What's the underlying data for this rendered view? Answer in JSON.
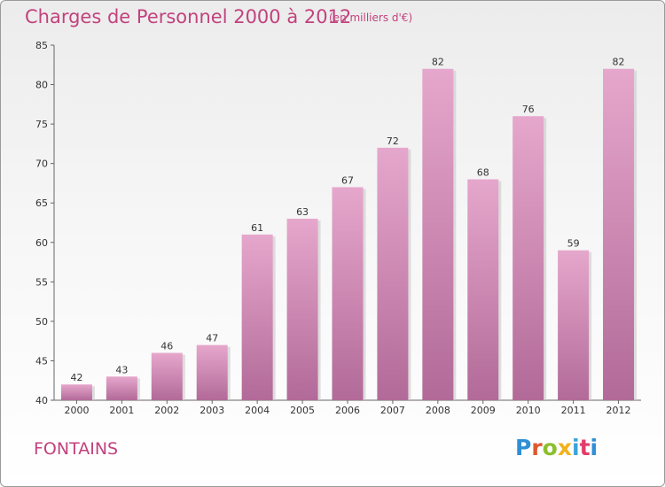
{
  "header": {
    "title": "Charges de Personnel 2000 à 2012",
    "subtitle": "(en milliers d'€)"
  },
  "footer": {
    "commune": "FONTAINS",
    "logo_text": "Proxiti"
  },
  "colors": {
    "title": "#c2427e",
    "bar_light": "#e6a7cc",
    "bar_dark": "#b26a98",
    "logo": [
      "#2e8ed6",
      "#e0582d",
      "#8cbf2c",
      "#f2b21b",
      "#3aa3db",
      "#e23c6a"
    ]
  },
  "chart_data": {
    "type": "bar",
    "title": "Charges de Personnel 2000 à 2012",
    "subtitle": "(en milliers d'€)",
    "xlabel": "",
    "ylabel": "",
    "categories": [
      "2000",
      "2001",
      "2002",
      "2003",
      "2004",
      "2005",
      "2006",
      "2007",
      "2008",
      "2009",
      "2010",
      "2011",
      "2012"
    ],
    "values": [
      42,
      43,
      46,
      47,
      61,
      63,
      67,
      72,
      82,
      68,
      76,
      59,
      82
    ],
    "ylim": [
      40,
      85
    ],
    "yticks": [
      40,
      45,
      50,
      55,
      60,
      65,
      70,
      75,
      80,
      85
    ],
    "grid": false,
    "legend": "none",
    "data_labels": true
  }
}
